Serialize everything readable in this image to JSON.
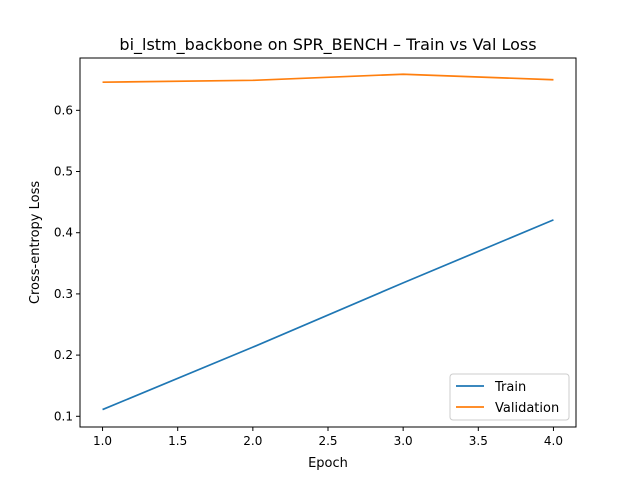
{
  "chart_data": {
    "type": "line",
    "title": "bi_lstm_backbone on SPR_BENCH – Train vs Val Loss",
    "xlabel": "Epoch",
    "ylabel": "Cross-entropy Loss",
    "x": [
      1.0,
      2.0,
      3.0,
      4.0
    ],
    "xlim": [
      0.85,
      4.15
    ],
    "ylim": [
      0.0825,
      0.6855
    ],
    "xticks": [
      "1.0",
      "1.5",
      "2.0",
      "2.5",
      "3.0",
      "3.5",
      "4.0"
    ],
    "yticks": [
      "0.1",
      "0.2",
      "0.3",
      "0.4",
      "0.5",
      "0.6"
    ],
    "grid": false,
    "legend_position": "lower-right",
    "series": [
      {
        "name": "Train",
        "color": "#1f77b4",
        "values": [
          0.111,
          0.213,
          0.318,
          0.421
        ]
      },
      {
        "name": "Validation",
        "color": "#ff7f0e",
        "values": [
          0.646,
          0.649,
          0.659,
          0.65
        ]
      }
    ]
  }
}
